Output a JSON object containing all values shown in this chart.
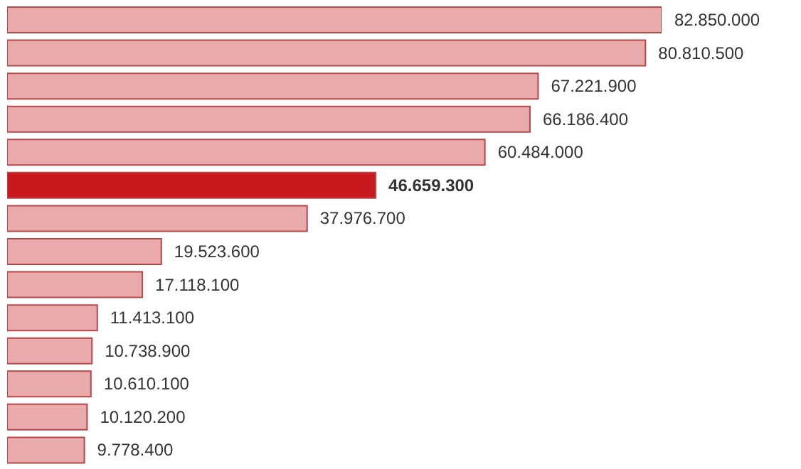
{
  "chart_data": {
    "type": "bar",
    "orientation": "horizontal",
    "categories": [
      null,
      null,
      null,
      null,
      null,
      null,
      null,
      null,
      null,
      null,
      null,
      null,
      null,
      null
    ],
    "values": [
      82850000,
      80810500,
      67221900,
      66186400,
      60484000,
      46659300,
      37976700,
      19523600,
      17118100,
      11413100,
      10738900,
      10610100,
      10120200,
      9778400
    ],
    "value_labels": [
      "82.850.000",
      "80.810.500",
      "67.221.900",
      "66.186.400",
      "60.484.000",
      "46.659.300",
      "37.976.700",
      "19.523.600",
      "17.118.100",
      "11.413.100",
      "10.738.900",
      "10.610.100",
      "10.120.200",
      "9.778.400"
    ],
    "colors": [
      "#e8aaab",
      "#e8aaab",
      "#e8aaab",
      "#e8aaab",
      "#e8aaab",
      "#c8191e",
      "#e8aaab",
      "#e8aaab",
      "#e8aaab",
      "#e8aaab",
      "#e8aaab",
      "#e8aaab",
      "#e8aaab",
      "#e8aaab"
    ],
    "grid": false,
    "legend": false
  }
}
